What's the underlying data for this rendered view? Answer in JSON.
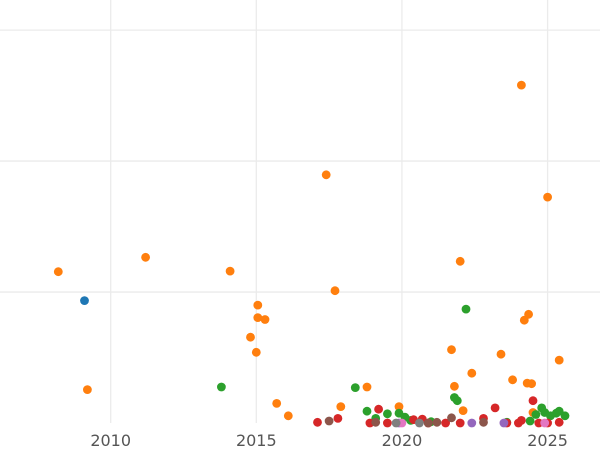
{
  "chart_data": {
    "type": "scatter",
    "title": "",
    "xlabel": "",
    "ylabel": "",
    "xlim": [
      2006.2,
      2026.8
    ],
    "ylim": [
      0,
      32.3
    ],
    "grid": true,
    "x_ticks": [
      2010,
      2015,
      2020,
      2025
    ],
    "x_tick_labels": [
      "2010",
      "2015",
      "2020",
      "2025"
    ],
    "y_gridlines": [
      10,
      20,
      30
    ],
    "series": [
      {
        "name": "blue",
        "color": "#1f77b4",
        "points": [
          [
            2009.1,
            9.35
          ]
        ]
      },
      {
        "name": "orange",
        "color": "#ff7f0e",
        "points": [
          [
            2008.2,
            11.55
          ],
          [
            2009.2,
            2.55
          ],
          [
            2011.2,
            12.65
          ],
          [
            2014.1,
            11.6
          ],
          [
            2014.8,
            6.55
          ],
          [
            2015.0,
            5.4
          ],
          [
            2015.05,
            9.0
          ],
          [
            2015.05,
            8.05
          ],
          [
            2015.3,
            7.9
          ],
          [
            2015.7,
            1.5
          ],
          [
            2016.1,
            0.55
          ],
          [
            2017.4,
            18.95
          ],
          [
            2017.7,
            10.1
          ],
          [
            2017.9,
            1.25
          ],
          [
            2018.8,
            2.75
          ],
          [
            2019.9,
            1.25
          ],
          [
            2021.7,
            5.6
          ],
          [
            2021.8,
            2.8
          ],
          [
            2022.0,
            12.35
          ],
          [
            2022.4,
            3.8
          ],
          [
            2022.1,
            0.95
          ],
          [
            2023.4,
            5.25
          ],
          [
            2023.8,
            3.3
          ],
          [
            2024.1,
            25.8
          ],
          [
            2024.2,
            7.85
          ],
          [
            2024.35,
            8.3
          ],
          [
            2024.3,
            3.05
          ],
          [
            2024.45,
            3.0
          ],
          [
            2024.5,
            0.8
          ],
          [
            2025.0,
            17.25
          ],
          [
            2025.4,
            4.8
          ]
        ]
      },
      {
        "name": "green",
        "color": "#2ca02c",
        "points": [
          [
            2013.8,
            2.75
          ],
          [
            2018.4,
            2.7
          ],
          [
            2018.8,
            0.9
          ],
          [
            2019.1,
            0.35
          ],
          [
            2019.5,
            0.7
          ],
          [
            2019.9,
            0.75
          ],
          [
            2020.1,
            0.45
          ],
          [
            2020.3,
            0.2
          ],
          [
            2021.0,
            0.1
          ],
          [
            2021.8,
            1.95
          ],
          [
            2021.9,
            1.7
          ],
          [
            2022.2,
            8.7
          ],
          [
            2023.6,
            0.05
          ],
          [
            2024.4,
            0.15
          ],
          [
            2024.6,
            0.65
          ],
          [
            2024.8,
            1.15
          ],
          [
            2024.9,
            0.8
          ],
          [
            2025.1,
            0.55
          ],
          [
            2025.3,
            0.75
          ],
          [
            2025.4,
            0.9
          ],
          [
            2025.6,
            0.55
          ]
        ]
      },
      {
        "name": "red",
        "color": "#d62728",
        "points": [
          [
            2017.1,
            0.05
          ],
          [
            2017.8,
            0.35
          ],
          [
            2018.9,
            0.0
          ],
          [
            2019.2,
            1.05
          ],
          [
            2019.5,
            0.0
          ],
          [
            2020.4,
            0.25
          ],
          [
            2020.7,
            0.3
          ],
          [
            2020.9,
            0.0
          ],
          [
            2021.5,
            0.0
          ],
          [
            2022.0,
            0.0
          ],
          [
            2023.2,
            1.15
          ],
          [
            2022.8,
            0.35
          ],
          [
            2023.6,
            0.0
          ],
          [
            2024.0,
            0.0
          ],
          [
            2024.1,
            0.2
          ],
          [
            2024.5,
            1.7
          ],
          [
            2024.7,
            0.0
          ],
          [
            2025.0,
            0.0
          ],
          [
            2025.4,
            0.05
          ]
        ]
      },
      {
        "name": "purple",
        "color": "#9467bd",
        "points": [
          [
            2019.9,
            0.0
          ],
          [
            2022.4,
            0.0
          ],
          [
            2023.5,
            0.0
          ]
        ]
      },
      {
        "name": "brown",
        "color": "#8c564b",
        "points": [
          [
            2017.5,
            0.15
          ],
          [
            2019.1,
            0.05
          ],
          [
            2020.9,
            0.0
          ],
          [
            2021.2,
            0.05
          ],
          [
            2021.7,
            0.4
          ],
          [
            2022.8,
            0.05
          ]
        ]
      },
      {
        "name": "pink",
        "color": "#e377c2",
        "points": [
          [
            2020.0,
            0.0
          ],
          [
            2024.9,
            0.0
          ]
        ]
      },
      {
        "name": "gray",
        "color": "#7f7f7f",
        "points": [
          [
            2019.8,
            0.0
          ],
          [
            2020.6,
            0.0
          ]
        ]
      }
    ]
  }
}
